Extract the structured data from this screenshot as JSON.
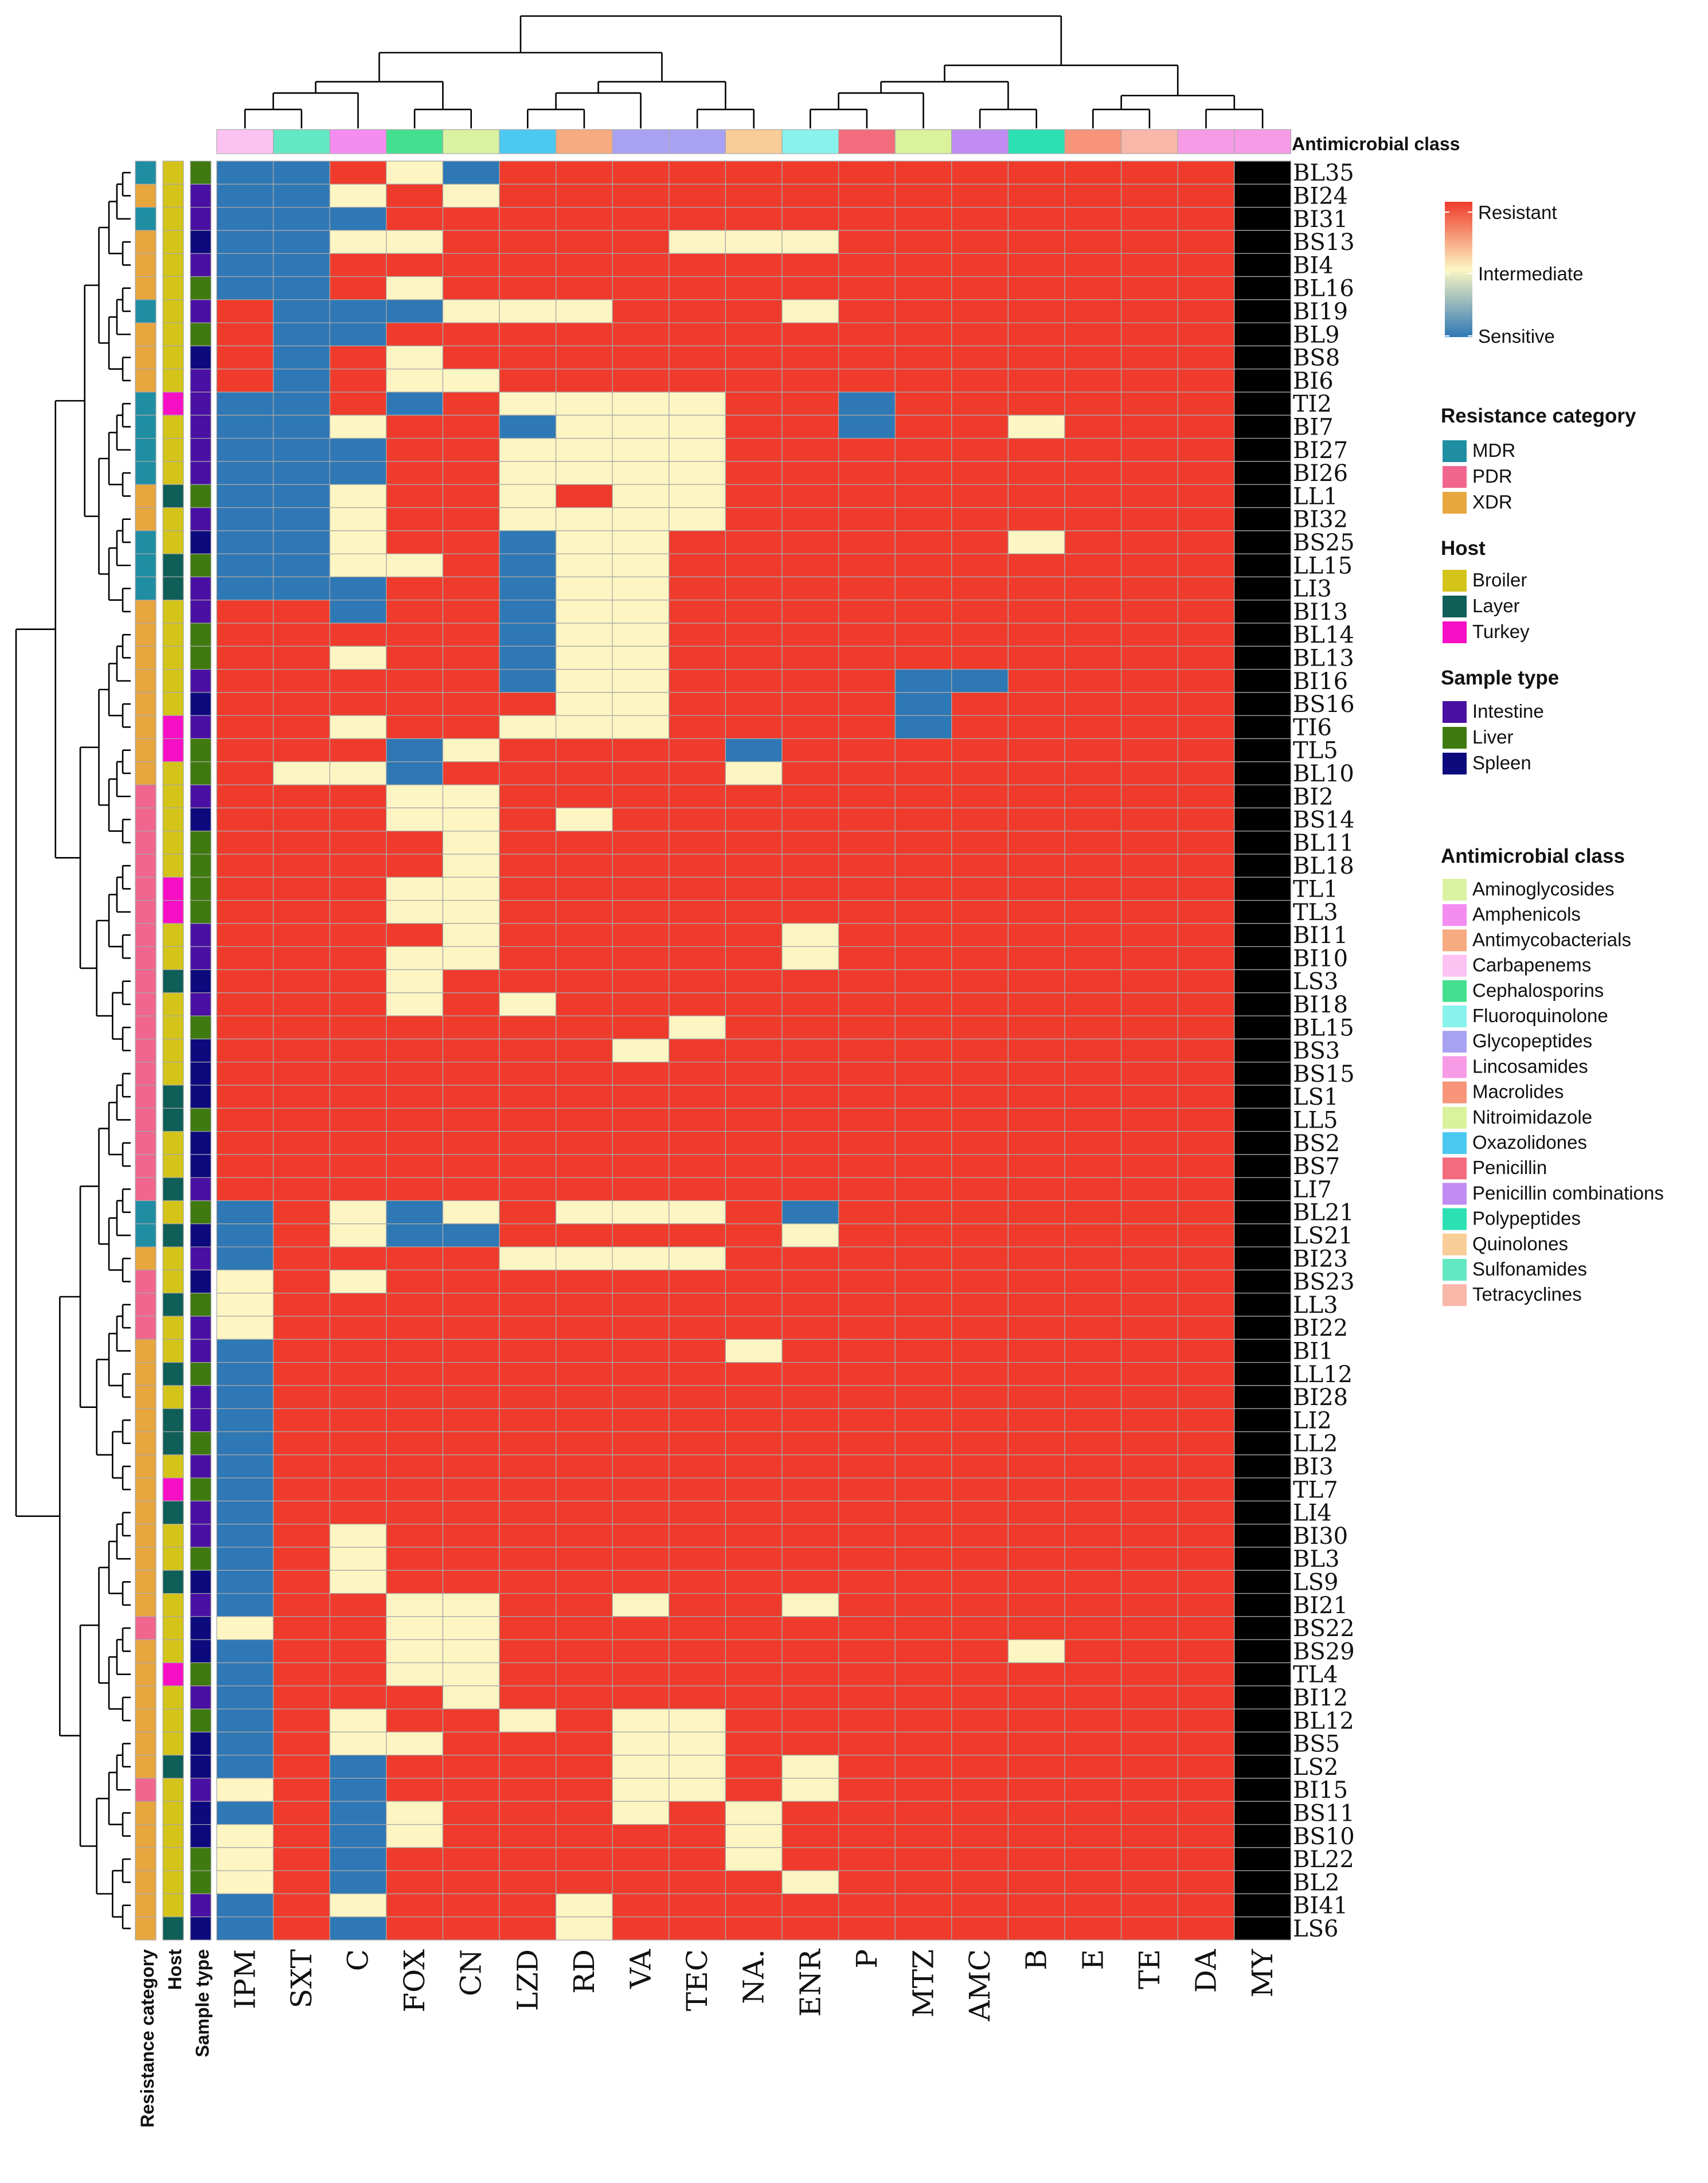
{
  "chart_data": {
    "type": "heatmap",
    "colors": {
      "Resistant": "#ef3b2c",
      "Intermediate": "#fdf6c3",
      "Sensitive": "#2e78b5",
      "grid": "#a8a8a8",
      "dendrogram": "#000000"
    },
    "color_scale": {
      "high": "Resistant",
      "mid": "Intermediate",
      "low": "Sensitive"
    },
    "columns": [
      "IPM",
      "SXT",
      "C",
      "FOX",
      "CN",
      "LZD",
      "RD",
      "VA",
      "TEC",
      "NA.",
      "ENR",
      "P",
      "MTZ",
      "AMC",
      "B",
      "E",
      "TE",
      "DA",
      "MY"
    ],
    "column_class": [
      "Carbapenems",
      "Sulfonamides",
      "Amphenicols",
      "Cephalosporins",
      "Aminoglycosides",
      "Oxazolidones",
      "Antimycobacterials",
      "Glycopeptides",
      "Glycopeptides",
      "Quinolones",
      "Fluoroquinolone",
      "Penicillin",
      "Nitroimidazole",
      "Penicillin combinations",
      "Polypeptides",
      "Macrolides",
      "Tetracyclines",
      "Lincosamides",
      "Lincosamides"
    ],
    "column_annotation_label": "Antimicrobial class",
    "row_annotation_labels": [
      "Resistance category",
      "Host",
      "Sample type"
    ],
    "rows": [
      "BL35",
      "BI24",
      "BI31",
      "BS13",
      "BI4",
      "BL16",
      "BI19",
      "BL9",
      "BS8",
      "BI6",
      "TI2",
      "BI7",
      "BI27",
      "BI26",
      "LL1",
      "BI32",
      "BS25",
      "LL15",
      "LI3",
      "BI13",
      "BL14",
      "BL13",
      "BI16",
      "BS16",
      "TI6",
      "TL5",
      "BL10",
      "BI2",
      "BS14",
      "BL11",
      "BL18",
      "TL1",
      "TL3",
      "BI11",
      "BI10",
      "LS3",
      "BI18",
      "BL15",
      "BS3",
      "BS15",
      "LS1",
      "LL5",
      "BS2",
      "BS7",
      "LI7",
      "BL21",
      "LS21",
      "BI23",
      "BS23",
      "LL3",
      "BI22",
      "BI1",
      "LL12",
      "BI28",
      "LI2",
      "LL2",
      "BI3",
      "TL7",
      "LI4",
      "BI30",
      "BL3",
      "LS9",
      "BI21",
      "BS22",
      "BS29",
      "TL4",
      "BI12",
      "BL12",
      "BS5",
      "LS2",
      "BI15",
      "BS11",
      "BS10",
      "BL22",
      "BL2",
      "BI41",
      "LS6"
    ],
    "matrix": [
      "SSRIS RRRRR RRRRRRRR",
      "SSIRI RRRRR RRRRRRRR",
      "SSSRR RRRRR RRRRRRRR",
      "SSIIR RRRII IRRRRRRR",
      "SSRRR RRRRR RRRRRRRR",
      "SSRIR RRRRR RRRRRRRR",
      "RSSSI IIRRR IRRRRRRR",
      "RSSRR RRRRR RRRRRRRR",
      "RSRIR RRRRR RRRRRRRR",
      "RSRII RRRRR RRRRRRRR",
      "SSRSR IIIIR RSRRRRRR",
      "SSIRR SIIIR RSRRIRRR",
      "SSSRR IIIIR RRRRRRRR",
      "SSSRR IIIIR RRRRRRRR",
      "SSIRR IRIIR RRRRRRRR",
      "SSIRR IIIIR RRRRRRRR",
      "SSIRR SIIRR RRRRIRRR",
      "SSIIR SIIRR RRRRRRRR",
      "SSSRR SIIRR RRRRRRRR",
      "RRSRR SIIRR RRRRRRRR",
      "RRRRR SIIRR RRRRRRRR",
      "RRIRR SIIRR RRRRRRRR",
      "RRRRR SIIRR RRSSRRRR",
      "RRRRR RIIRR RRSRRRRR",
      "RRIRR IIIRR RRSRRRRR",
      "RRRSI RRRRS RRRRRRRR",
      "RIISR RRRRI RRRRRRRR",
      "RRRII RRRRR RRRRRRRR",
      "RRRII RIRRR RRRRRRRR",
      "RRRRI RRRRR RRRRRRRR",
      "RRRRI RRRRR RRRRRRRR",
      "RRRII RRRRR RRRRRRRR",
      "RRRII RRRRR RRRRRRRR",
      "RRRRI RRRRR IRRRRRRR",
      "RRRII RRRRR IRRRRRRR",
      "RRRIR RRRRR RRRRRRRR",
      "RRRIR IRRRR RRRRRRRR",
      "RRRRR RRRIR RRRRRRRR",
      "RRRRR RRIRR RRRRRRRR",
      "RRRRR RRRRR RRRRRRRR",
      "RRRRR RRRRR RRRRRRRR",
      "RRRRR RRRRR RRRRRRRR",
      "RRRRR RRRRR RRRRRRRR",
      "RRRRR RRRRR RRRRRRRR",
      "RRRRR RRRRR RRRRRRRR",
      "SRISI RIIIR SRRRRRRR",
      "SRISS RRRRR IRRRRRRR",
      "SRRRR IIIIR RRRRRRRR",
      "IRIRR RRRRR RRRRRRRR",
      "IRRRR RRRRR RRRRRRRR",
      "IRRRR RRRRR RRRRRRRR",
      "SRRRR RRRRI RRRRRRRR",
      "SRRRR RRRRR RRRRRRRR",
      "SRRRR RRRRR RRRRRRRR",
      "SRRRR RRRRR RRRRRRRR",
      "SRRRR RRRRR RRRRRRRR",
      "SRRRR RRRRR RRRRRRRR",
      "SRRRR RRRRR RRRRRRRR",
      "SRRRR RRRRR RRRRRRRR",
      "SRIRR RRRRR RRRRRRRR",
      "SRIRR RRRRR RRRRRRRR",
      "SRIRR RRRRR RRRRRRRR",
      "SRRII RRIRR IRRRRRRR",
      "IRRII RRRRR RRRRRRRR",
      "SRRII RRRRR RRRRIRRR",
      "SRRII RRRRR RRRRRRRR",
      "SRRRI RRRRR RRRRRRRR",
      "SRIRR IRIIR RRRRRRRR",
      "SRIIR RRIIR RRRRRRRR",
      "SRSRR RRIIR IRRRRRRR",
      "IRSRR RRIIR IRRRRRRR",
      "SRSIR RRIRI RRRRRRRR",
      "IRSIR RRRRI RRRRRRRR",
      "IRSRR RRRRI RRRRRRRR",
      "IRSRR RRRRR IRRRRRRR",
      "SRIRR RIRRR RRRRRRRR",
      "SRSRR RIRRR RRRRRRRR"
    ],
    "resistance_category": [
      "MDR",
      "XDR",
      "MDR",
      "XDR",
      "XDR",
      "XDR",
      "MDR",
      "XDR",
      "XDR",
      "XDR",
      "MDR",
      "MDR",
      "MDR",
      "MDR",
      "XDR",
      "XDR",
      "MDR",
      "MDR",
      "MDR",
      "XDR",
      "XDR",
      "XDR",
      "XDR",
      "XDR",
      "XDR",
      "XDR",
      "XDR",
      "PDR",
      "PDR",
      "PDR",
      "PDR",
      "PDR",
      "PDR",
      "PDR",
      "PDR",
      "PDR",
      "PDR",
      "PDR",
      "PDR",
      "PDR",
      "PDR",
      "PDR",
      "PDR",
      "PDR",
      "PDR",
      "MDR",
      "MDR",
      "XDR",
      "PDR",
      "PDR",
      "PDR",
      "XDR",
      "XDR",
      "XDR",
      "XDR",
      "XDR",
      "XDR",
      "XDR",
      "XDR",
      "XDR",
      "XDR",
      "XDR",
      "XDR",
      "PDR",
      "XDR",
      "XDR",
      "XDR",
      "XDR",
      "XDR",
      "XDR",
      "PDR",
      "XDR",
      "XDR",
      "XDR",
      "XDR",
      "XDR",
      "XDR"
    ],
    "host": [
      "Broiler",
      "Broiler",
      "Broiler",
      "Broiler",
      "Broiler",
      "Broiler",
      "Broiler",
      "Broiler",
      "Broiler",
      "Broiler",
      "Turkey",
      "Broiler",
      "Broiler",
      "Broiler",
      "Layer",
      "Broiler",
      "Broiler",
      "Layer",
      "Layer",
      "Broiler",
      "Broiler",
      "Broiler",
      "Broiler",
      "Broiler",
      "Turkey",
      "Turkey",
      "Broiler",
      "Broiler",
      "Broiler",
      "Broiler",
      "Broiler",
      "Turkey",
      "Turkey",
      "Broiler",
      "Broiler",
      "Layer",
      "Broiler",
      "Broiler",
      "Broiler",
      "Broiler",
      "Layer",
      "Layer",
      "Broiler",
      "Broiler",
      "Layer",
      "Broiler",
      "Layer",
      "Broiler",
      "Broiler",
      "Layer",
      "Broiler",
      "Broiler",
      "Layer",
      "Broiler",
      "Layer",
      "Layer",
      "Broiler",
      "Turkey",
      "Layer",
      "Broiler",
      "Broiler",
      "Layer",
      "Broiler",
      "Broiler",
      "Broiler",
      "Turkey",
      "Broiler",
      "Broiler",
      "Broiler",
      "Layer",
      "Broiler",
      "Broiler",
      "Broiler",
      "Broiler",
      "Broiler",
      "Broiler",
      "Layer"
    ],
    "sample_type": [
      "Liver",
      "Intestine",
      "Intestine",
      "Spleen",
      "Intestine",
      "Liver",
      "Intestine",
      "Liver",
      "Spleen",
      "Intestine",
      "Intestine",
      "Intestine",
      "Intestine",
      "Intestine",
      "Liver",
      "Intestine",
      "Spleen",
      "Liver",
      "Intestine",
      "Intestine",
      "Liver",
      "Liver",
      "Intestine",
      "Spleen",
      "Intestine",
      "Liver",
      "Liver",
      "Intestine",
      "Spleen",
      "Liver",
      "Liver",
      "Liver",
      "Liver",
      "Intestine",
      "Intestine",
      "Spleen",
      "Intestine",
      "Liver",
      "Spleen",
      "Spleen",
      "Spleen",
      "Liver",
      "Spleen",
      "Spleen",
      "Intestine",
      "Liver",
      "Spleen",
      "Intestine",
      "Spleen",
      "Liver",
      "Intestine",
      "Intestine",
      "Liver",
      "Intestine",
      "Intestine",
      "Liver",
      "Intestine",
      "Liver",
      "Intestine",
      "Intestine",
      "Liver",
      "Spleen",
      "Intestine",
      "Spleen",
      "Spleen",
      "Liver",
      "Intestine",
      "Liver",
      "Spleen",
      "Spleen",
      "Intestine",
      "Spleen",
      "Spleen",
      "Liver",
      "Liver",
      "Intestine",
      "Spleen"
    ],
    "legend": {
      "scale": {
        "labels": [
          "Resistant",
          "Intermediate",
          "Sensitive"
        ]
      },
      "resistance": {
        "title": "Resistance category",
        "items": [
          {
            "label": "MDR",
            "color": "#1f8ea3"
          },
          {
            "label": "PDR",
            "color": "#f0668f"
          },
          {
            "label": "XDR",
            "color": "#e8a63f"
          }
        ]
      },
      "host": {
        "title": "Host",
        "items": [
          {
            "label": "Broiler",
            "color": "#d4c41a"
          },
          {
            "label": "Layer",
            "color": "#0f5e57"
          },
          {
            "label": "Turkey",
            "color": "#f70fc6"
          }
        ]
      },
      "sample": {
        "title": "Sample type",
        "items": [
          {
            "label": "Intestine",
            "color": "#4a10a3"
          },
          {
            "label": "Liver",
            "color": "#3f7a10"
          },
          {
            "label": "Spleen",
            "color": "#0d0a7e"
          }
        ]
      },
      "antimicrobial": {
        "title": "Antimicrobial class",
        "items": [
          {
            "label": "Aminoglycosides",
            "color": "#d9f2a2"
          },
          {
            "label": "Amphenicols",
            "color": "#f58cf0"
          },
          {
            "label": "Antimycobacterials",
            "color": "#f7ab80"
          },
          {
            "label": "Carbapenems",
            "color": "#fcc2f2"
          },
          {
            "label": "Cephalosporins",
            "color": "#44e08f"
          },
          {
            "label": "Fluoroquinolone",
            "color": "#8af2ec"
          },
          {
            "label": "Glycopeptides",
            "color": "#a9a2f3"
          },
          {
            "label": "Lincosamides",
            "color": "#f79be7"
          },
          {
            "label": "Macrolides",
            "color": "#f7947a"
          },
          {
            "label": "Nitroimidazole",
            "color": "#d9f29b"
          },
          {
            "label": "Oxazolidones",
            "color": "#4cc9f1"
          },
          {
            "label": "Penicillin",
            "color": "#f26c7d"
          },
          {
            "label": "Penicillin combinations",
            "color": "#c08cf3"
          },
          {
            "label": "Polypeptides",
            "color": "#2ce0b3"
          },
          {
            "label": "Quinolones",
            "color": "#f8cd98"
          },
          {
            "label": "Sulfonamides",
            "color": "#63e8c3"
          },
          {
            "label": "Tetracyclines",
            "color": "#f8b7a9"
          }
        ]
      }
    }
  }
}
